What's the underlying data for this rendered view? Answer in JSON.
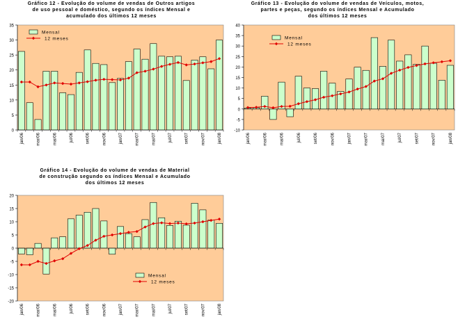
{
  "colors": {
    "plot_bg": "#FFCC99",
    "bar_fill": "#CCFFCC",
    "bar_stroke": "#000000",
    "line": "#E00000"
  },
  "chart_data": [
    {
      "type": "bar",
      "title_lines": [
        "Gráfico 12 - Evolução do volume de vendas de Outros artigos",
        "de uso pessoal e doméstico, segundo os índices Mensal e",
        "acumulado dos últimos 12 meses"
      ],
      "ylim": [
        0,
        35
      ],
      "yticks": [
        0,
        5,
        10,
        15,
        20,
        25,
        30,
        35
      ],
      "categories": [
        "jan/06",
        "fev/06",
        "mar/06",
        "abr/06",
        "mai/06",
        "jun/06",
        "jul/06",
        "ago/06",
        "set/06",
        "out/06",
        "nov/06",
        "dez/06",
        "jan/07",
        "fev/07",
        "mar/07",
        "abr/07",
        "mai/07",
        "jun/07",
        "jul/07",
        "ago/07",
        "set/07",
        "out/07",
        "nov/07",
        "dez/07",
        "jan/08"
      ],
      "xtick_labels": [
        "jan/06",
        "mar/06",
        "mai/06",
        "jul/06",
        "set/06",
        "nov/06",
        "jan/07",
        "mar/07",
        "mai/07",
        "jul/07",
        "set/07",
        "nov/07",
        "jan/08"
      ],
      "series": [
        {
          "name": "Mensal",
          "kind": "bar",
          "values": [
            26.2,
            9.1,
            3.5,
            19.6,
            19.6,
            12.4,
            11.8,
            19.2,
            26.7,
            22.2,
            21.8,
            15.8,
            17.2,
            22.8,
            27.0,
            23.6,
            28.8,
            24.6,
            24.4,
            24.6,
            16.5,
            23.3,
            24.4,
            20.4,
            30.0
          ]
        },
        {
          "name": "12 meses",
          "kind": "line",
          "values": [
            16.0,
            16.0,
            14.4,
            15.0,
            15.7,
            15.5,
            15.3,
            15.7,
            16.1,
            16.6,
            16.9,
            16.8,
            16.7,
            17.3,
            19.1,
            19.6,
            20.3,
            21.2,
            21.9,
            22.5,
            21.7,
            22.0,
            22.4,
            22.8,
            23.8
          ]
        }
      ],
      "legend": {
        "position": "top-left",
        "items": [
          "Mensal",
          "12 meses"
        ]
      }
    },
    {
      "type": "bar",
      "title_lines": [
        "Gráfico 13 - Evolução do volume de vendas de Veículos, motos,",
        "partes e peças, segundo os índices Mensal e Acumulado",
        "dos últimos 12 meses"
      ],
      "ylim": [
        -10,
        40
      ],
      "yticks": [
        -10,
        -5,
        0,
        5,
        10,
        15,
        20,
        25,
        30,
        35,
        40
      ],
      "categories": [
        "jan/06",
        "fev/06",
        "mar/06",
        "abr/06",
        "mai/06",
        "jun/06",
        "jul/06",
        "ago/06",
        "set/06",
        "out/06",
        "nov/06",
        "dez/06",
        "jan/07",
        "fev/07",
        "mar/07",
        "abr/07",
        "mai/07",
        "jun/07",
        "jul/07",
        "ago/07",
        "set/07",
        "out/07",
        "nov/07",
        "dez/07",
        "jan/08"
      ],
      "xtick_labels": [
        "jan/06",
        "mar/06",
        "mai/06",
        "jul/06",
        "set/06",
        "nov/06",
        "jan/07",
        "mar/07",
        "mai/07",
        "jul/07",
        "set/07",
        "nov/07",
        "jan/08"
      ],
      "series": [
        {
          "name": "Mensal",
          "kind": "bar",
          "values": [
            0.4,
            0.6,
            6.1,
            -5.0,
            12.8,
            -3.7,
            15.6,
            10.0,
            9.7,
            18.0,
            12.3,
            8.4,
            14.3,
            19.9,
            18.4,
            34.0,
            20.3,
            32.8,
            22.8,
            25.8,
            21.3,
            30.0,
            21.8,
            13.7,
            20.8
          ]
        },
        {
          "name": "12 meses",
          "kind": "line",
          "values": [
            0.7,
            0.8,
            1.2,
            0.6,
            1.2,
            1.3,
            2.5,
            3.5,
            4.4,
            5.6,
            6.3,
            7.2,
            8.1,
            9.5,
            10.7,
            13.3,
            14.4,
            17.0,
            18.5,
            19.8,
            20.7,
            21.5,
            22.0,
            22.5,
            23.0
          ]
        }
      ],
      "legend": {
        "position": "top-left",
        "items": [
          "Mensal",
          "12 meses"
        ]
      }
    },
    {
      "type": "bar",
      "title_lines": [
        "Gráfico 14 - Evolução do volume de vendas de Material",
        "de construção segundo os índices Mensal e Acumulado",
        "dos últimos 12 meses"
      ],
      "ylim": [
        -20,
        20
      ],
      "yticks": [
        -20,
        -15,
        -10,
        -5,
        0,
        5,
        10,
        15,
        20
      ],
      "categories": [
        "jan/06",
        "fev/06",
        "mar/06",
        "abr/06",
        "mai/06",
        "jun/06",
        "jul/06",
        "ago/06",
        "set/06",
        "out/06",
        "nov/06",
        "dez/06",
        "jan/07",
        "fev/07",
        "mar/07",
        "abr/07",
        "mai/07",
        "jun/07",
        "jul/07",
        "ago/07",
        "set/07",
        "out/07",
        "nov/07",
        "dez/07",
        "jan/08"
      ],
      "xtick_labels": [
        "jan/06",
        "mar/06",
        "mai/06",
        "jul/06",
        "set/06",
        "nov/06",
        "jan/07",
        "mar/07",
        "mai/07",
        "jul/07",
        "set/07",
        "nov/07",
        "jan/08"
      ],
      "series": [
        {
          "name": "Mensal",
          "kind": "bar",
          "values": [
            -2.2,
            -2.5,
            1.8,
            -9.8,
            3.9,
            4.3,
            11.1,
            12.5,
            13.6,
            15.0,
            10.3,
            -2.3,
            8.2,
            5.5,
            4.3,
            10.8,
            17.3,
            11.5,
            8.6,
            10.2,
            8.7,
            17.0,
            14.5,
            10.6,
            9.4
          ]
        },
        {
          "name": "12 meses",
          "kind": "line",
          "values": [
            -6.3,
            -6.3,
            -5.0,
            -5.8,
            -4.8,
            -4.0,
            -2.0,
            -0.2,
            1.0,
            3.0,
            4.5,
            5.0,
            5.5,
            6.0,
            6.3,
            8.0,
            9.3,
            9.6,
            9.3,
            9.5,
            9.2,
            9.5,
            10.0,
            10.5,
            11.0
          ]
        }
      ],
      "legend": {
        "position": "bottom-center",
        "items": [
          "Mensal",
          "12 meses"
        ]
      }
    }
  ]
}
